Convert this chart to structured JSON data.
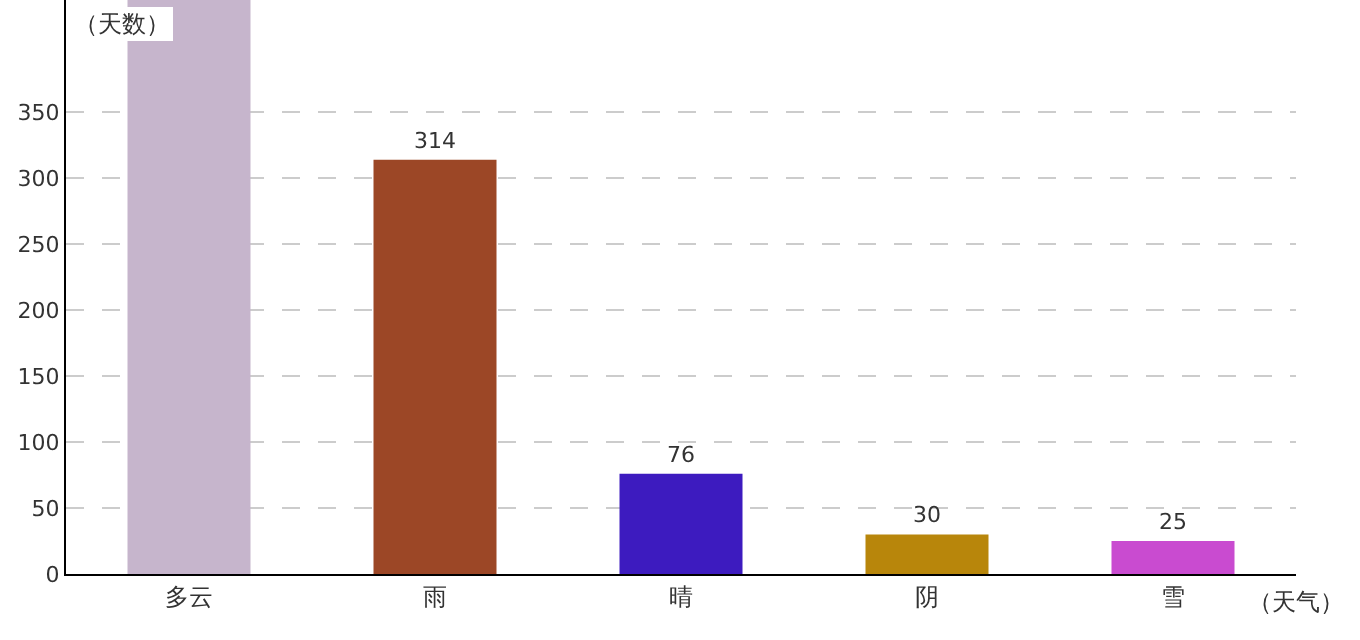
{
  "chart_data": {
    "type": "bar",
    "ylabel": "（天数）",
    "xlabel": "（天气）",
    "categories": [
      "多云",
      "雨",
      "晴",
      "阴",
      "雪"
    ],
    "values": [
      435,
      314,
      76,
      30,
      25
    ],
    "colors": [
      "#c6b5cc",
      "#9c4726",
      "#3d1bbf",
      "#b8860b",
      "#c94bd0"
    ],
    "value_labels": [
      null,
      "314",
      "76",
      "30",
      "25"
    ],
    "ylim": [
      0,
      435
    ],
    "yticks": [
      0,
      50,
      100,
      150,
      200,
      250,
      300,
      350
    ],
    "grid": "y",
    "legend": false
  }
}
